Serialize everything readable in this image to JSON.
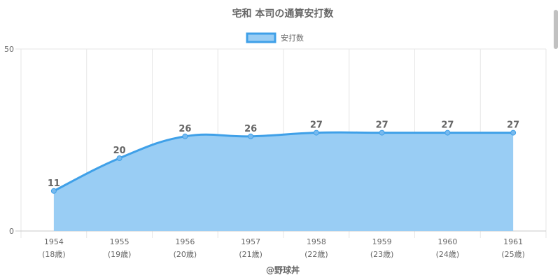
{
  "chart_data": {
    "type": "area",
    "title": "宅和 本司の通算安打数",
    "legend": {
      "label": "安打数",
      "position": "top"
    },
    "categories": [
      "1954",
      "1955",
      "1956",
      "1957",
      "1958",
      "1959",
      "1960",
      "1961"
    ],
    "sublabels": [
      "(18歳)",
      "(19歳)",
      "(20歳)",
      "(21歳)",
      "(22歳)",
      "(23歳)",
      "(24歳)",
      "(25歳)"
    ],
    "series": [
      {
        "name": "安打数",
        "values": [
          11,
          20,
          26,
          26,
          27,
          27,
          27,
          27
        ]
      }
    ],
    "ylim": [
      0,
      50
    ],
    "yticks": [
      0,
      50
    ],
    "grid": true,
    "colors": {
      "line": "#3fa0e8",
      "fill": "#99cdf4",
      "grid": "#e6e6e6",
      "text": "#666666"
    }
  },
  "credit": "@野球丼"
}
